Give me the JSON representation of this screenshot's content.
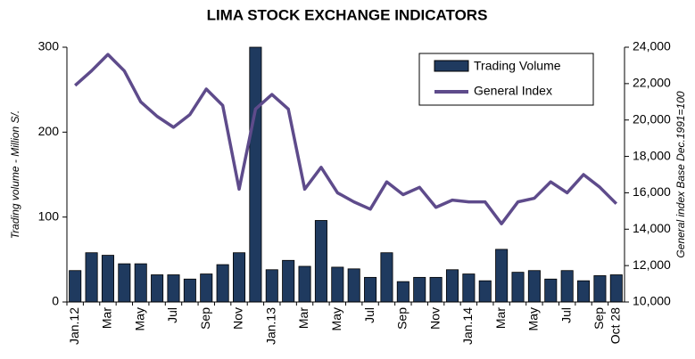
{
  "chart_data": {
    "type": "bar_line",
    "title": "LIMA STOCK EXCHANGE INDICATORS",
    "ylabel": "Trading volume - Million S/.",
    "y2label": "General index  Base Dec.1991=100",
    "categories": [
      "Jan.12",
      null,
      "Mar",
      null,
      "May",
      null,
      "Jul",
      null,
      "Sep",
      null,
      "Nov",
      null,
      "Jan.13",
      null,
      "Mar",
      null,
      "May",
      null,
      "Jul",
      null,
      "Sep",
      null,
      "Nov",
      null,
      "Jan.14",
      null,
      "Mar",
      null,
      "May",
      null,
      "Jul",
      null,
      "Sep",
      "Oct 28"
    ],
    "series": [
      {
        "name": "Trading Volume",
        "type": "bar",
        "color": "#1f3a5f",
        "values": [
          37,
          58,
          55,
          45,
          45,
          32,
          32,
          27,
          33,
          44,
          58,
          300,
          38,
          49,
          42,
          96,
          41,
          39,
          29,
          58,
          24,
          29,
          29,
          38,
          33,
          25,
          62,
          35,
          37,
          27,
          37,
          25,
          31,
          32
        ]
      },
      {
        "name": "General Index",
        "type": "line",
        "axis": "y2",
        "color": "#5e4b8b",
        "values": [
          21900,
          22700,
          23600,
          22700,
          21000,
          20200,
          19600,
          20300,
          21700,
          20800,
          16200,
          20600,
          21400,
          20600,
          16200,
          17400,
          16000,
          15500,
          15100,
          16600,
          15900,
          16300,
          15200,
          15600,
          15500,
          15500,
          14300,
          15500,
          15700,
          16600,
          16000,
          17000,
          16300,
          15400
        ]
      }
    ],
    "ylim": [
      0,
      300
    ],
    "yticks": [
      0,
      100,
      200,
      300
    ],
    "y2lim": [
      10000,
      24000
    ],
    "y2ticks": [
      {
        "value": 10000,
        "label": "10,000"
      },
      {
        "value": 12000,
        "label": "12,000"
      },
      {
        "value": 14000,
        "label": "14,000"
      },
      {
        "value": 16000,
        "label": "16,000"
      },
      {
        "value": 18000,
        "label": "18,000"
      },
      {
        "value": 20000,
        "label": "20,000"
      },
      {
        "value": 22000,
        "label": "22,000"
      },
      {
        "value": 24000,
        "label": "24,000"
      }
    ],
    "legend": "upper right"
  }
}
